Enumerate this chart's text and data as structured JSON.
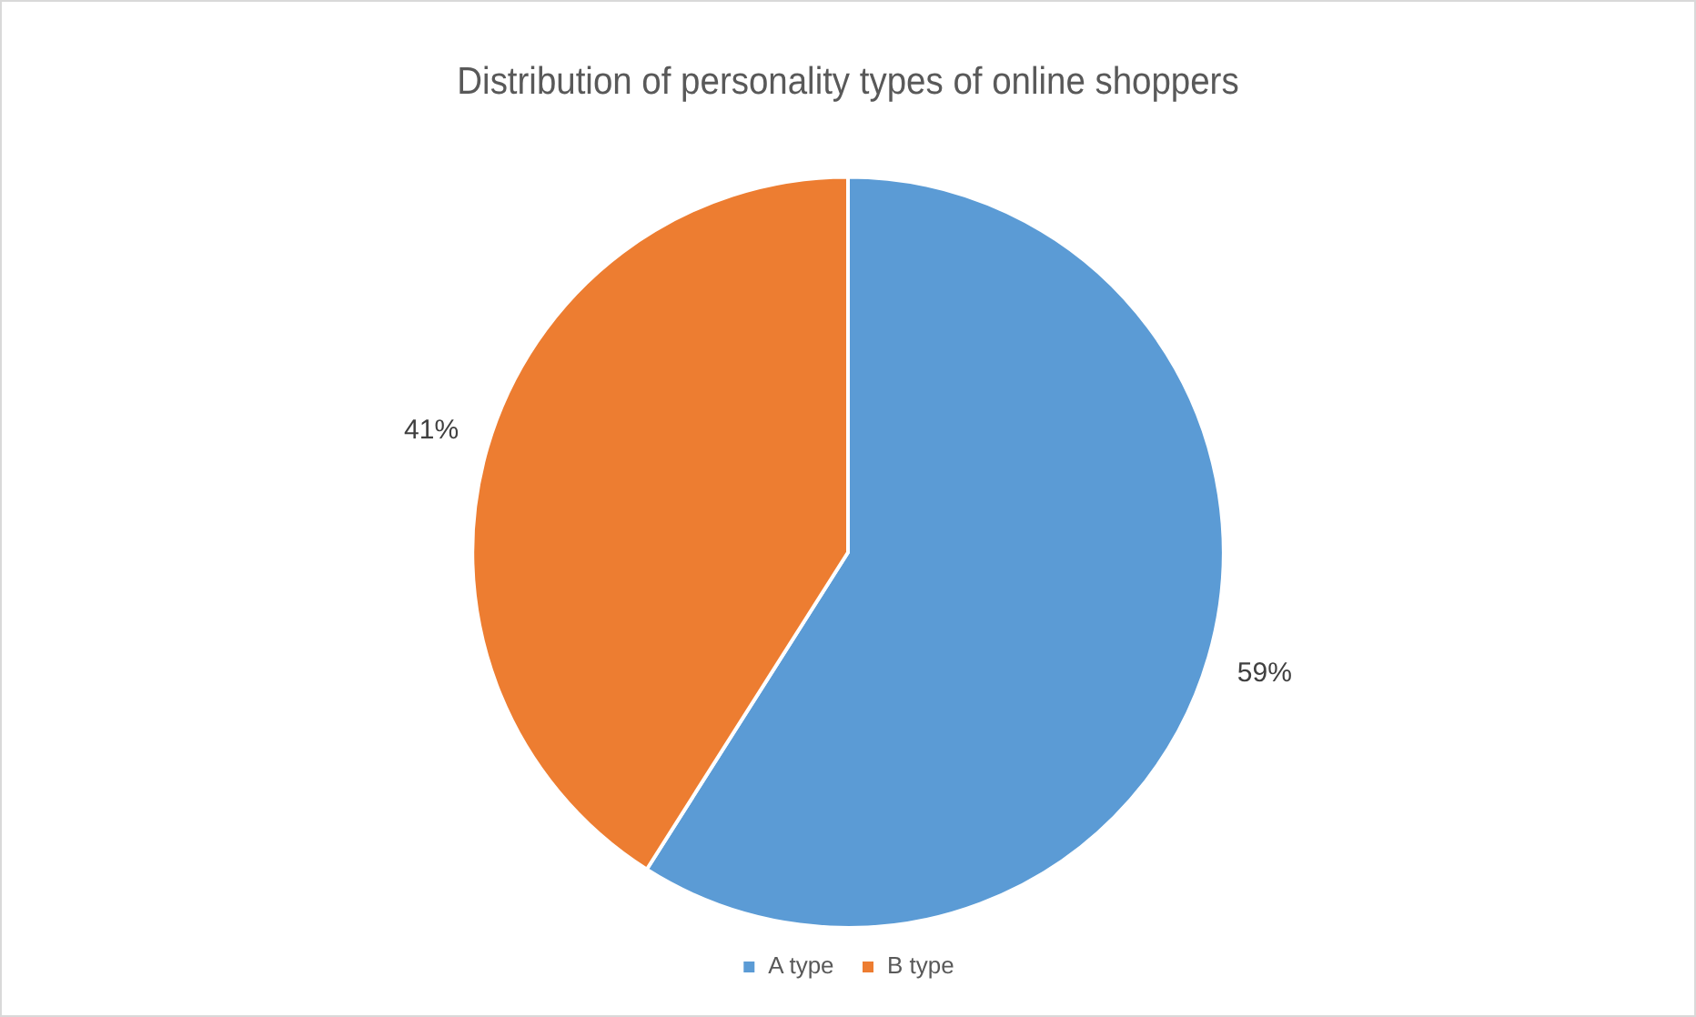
{
  "chart_data": {
    "type": "pie",
    "title": "Distribution of personality types of online shoppers",
    "categories": [
      "A type",
      "B type"
    ],
    "values": [
      59,
      41
    ],
    "colors": [
      "#5b9bd5",
      "#ed7d31"
    ],
    "value_labels": [
      "59%",
      "41%"
    ],
    "legend": "bottom"
  }
}
